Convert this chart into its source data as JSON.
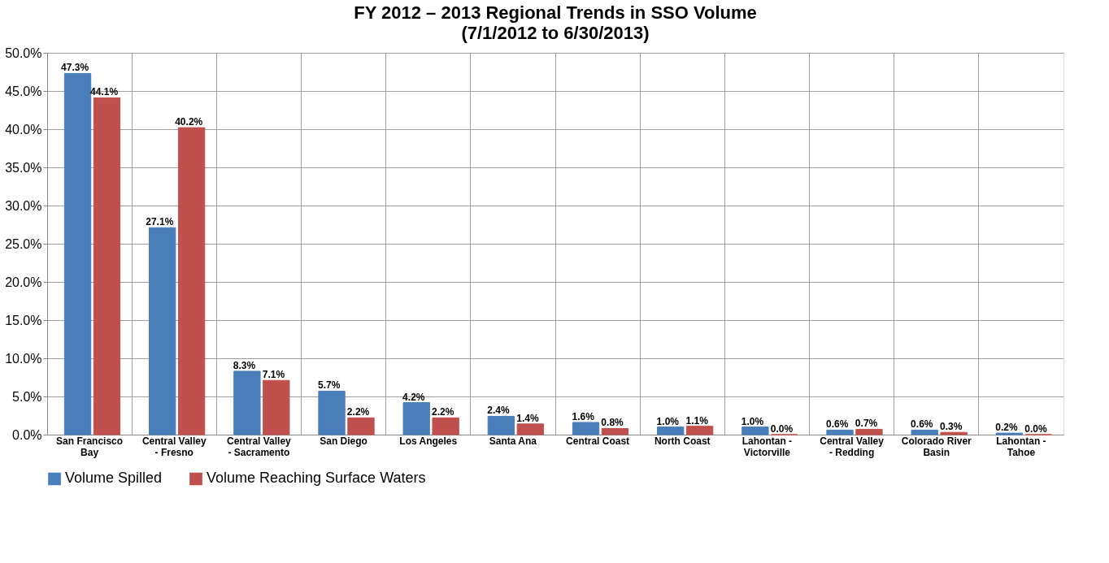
{
  "chart_data": {
    "type": "bar",
    "title": "FY 2012 – 2013 Regional Trends in SSO Volume",
    "subtitle": "(7/1/2012 to 6/30/2013)",
    "categories": [
      "San Francisco Bay",
      "Central Valley - Fresno",
      "Central Valley - Sacramento",
      "San Diego",
      "Los Angeles",
      "Santa Ana",
      "Central Coast",
      "North Coast",
      "Lahontan - Victorville",
      "Central Valley - Redding",
      "Colorado River Basin",
      "Lahontan - Tahoe"
    ],
    "series": [
      {
        "name": "Volume Spilled",
        "color": "#4a7ebb",
        "values": [
          47.3,
          27.1,
          8.3,
          5.7,
          4.2,
          2.4,
          1.6,
          1.0,
          1.0,
          0.6,
          0.6,
          0.2
        ],
        "value_labels": [
          "47.3%",
          "27.1%",
          "8.3%",
          "5.7%",
          "4.2%",
          "2.4%",
          "1.6%",
          "1.0%",
          "1.0%",
          "0.6%",
          "0.6%",
          "0.2%"
        ]
      },
      {
        "name": "Volume Reaching Surface Waters",
        "color": "#c0504d",
        "values": [
          44.1,
          40.2,
          7.1,
          2.2,
          2.2,
          1.4,
          0.8,
          1.1,
          0.0,
          0.7,
          0.3,
          0.0
        ],
        "value_labels": [
          "44.1%",
          "40.2%",
          "7.1%",
          "2.2%",
          "2.2%",
          "1.4%",
          "0.8%",
          "1.1%",
          "0.0%",
          "0.7%",
          "0.3%",
          "0.0%"
        ]
      }
    ],
    "ylim": [
      0,
      50
    ],
    "yticks": [
      {
        "value": 0,
        "label": "0.0%"
      },
      {
        "value": 5,
        "label": "5.0%"
      },
      {
        "value": 10,
        "label": "10.0%"
      },
      {
        "value": 15,
        "label": "15.0%"
      },
      {
        "value": 20,
        "label": "20.0%"
      },
      {
        "value": 25,
        "label": "25.0%"
      },
      {
        "value": 30,
        "label": "30.0%"
      },
      {
        "value": 35,
        "label": "35.0%"
      },
      {
        "value": 40,
        "label": "40.0%"
      },
      {
        "value": 45,
        "label": "45.0%"
      },
      {
        "value": 50,
        "label": "50.0%"
      }
    ],
    "grid": true,
    "legend": "bottom"
  }
}
